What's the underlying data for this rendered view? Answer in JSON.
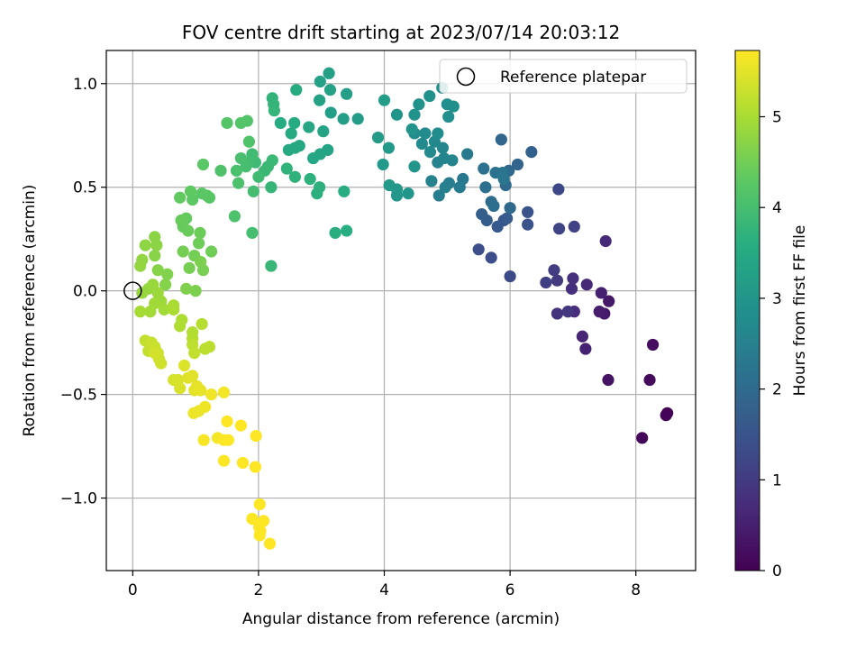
{
  "chart_data": {
    "type": "scatter",
    "title": "FOV centre drift starting at 2023/07/14 20:03:12",
    "xlabel": "Angular distance from reference (arcmin)",
    "ylabel": "Rotation from reference (arcmin)",
    "xlim": [
      -0.42,
      8.95
    ],
    "ylim": [
      -1.35,
      1.16
    ],
    "xticks": [
      0,
      2,
      4,
      6,
      8
    ],
    "xtick_labels": [
      "0",
      "2",
      "4",
      "6",
      "8"
    ],
    "yticks": [
      -1.0,
      -0.5,
      0.0,
      0.5,
      1.0
    ],
    "ytick_labels": [
      "−1.0",
      "−0.5",
      "0.0",
      "0.5",
      "1.0"
    ],
    "grid": true,
    "colormap": "viridis",
    "colorbar": {
      "label": "Hours from first FF file",
      "range": [
        0,
        5.73
      ],
      "ticks": [
        0,
        1,
        2,
        3,
        4,
        5
      ],
      "tick_labels": [
        "0",
        "1",
        "2",
        "3",
        "4",
        "5"
      ]
    },
    "legend": {
      "placement": "top-right",
      "entries": [
        {
          "label": "Reference platepar",
          "marker": "open-circle"
        }
      ]
    },
    "reference_point": {
      "x": 0.0,
      "y": 0.0
    },
    "series": [
      {
        "columns": [
          "x",
          "y",
          "hours"
        ],
        "points": [
          [
            8.5,
            -0.59,
            0.02
          ],
          [
            8.48,
            -0.6,
            0.05
          ],
          [
            8.1,
            -0.71,
            0.1
          ],
          [
            8.22,
            -0.43,
            0.15
          ],
          [
            8.27,
            -0.26,
            0.22
          ],
          [
            7.56,
            -0.43,
            0.3
          ],
          [
            7.57,
            -0.05,
            0.38
          ],
          [
            7.5,
            -0.11,
            0.42
          ],
          [
            7.42,
            -0.1,
            0.48
          ],
          [
            7.45,
            -0.01,
            0.52
          ],
          [
            7.2,
            -0.28,
            0.56
          ],
          [
            7.15,
            -0.22,
            0.6
          ],
          [
            7.22,
            0.03,
            0.66
          ],
          [
            7.52,
            0.24,
            0.7
          ],
          [
            7.02,
            -0.1,
            0.74
          ],
          [
            6.98,
            0.01,
            0.78
          ],
          [
            7.0,
            0.06,
            0.82
          ],
          [
            6.75,
            -0.11,
            0.88
          ],
          [
            6.92,
            -0.1,
            0.92
          ],
          [
            6.75,
            0.05,
            0.98
          ],
          [
            6.7,
            0.1,
            1.02
          ],
          [
            6.57,
            0.04,
            1.08
          ],
          [
            7.02,
            0.31,
            1.12
          ],
          [
            6.78,
            0.3,
            1.18
          ],
          [
            6.77,
            0.49,
            1.24
          ],
          [
            6.0,
            0.07,
            1.3
          ],
          [
            5.7,
            0.16,
            1.36
          ],
          [
            5.5,
            0.2,
            1.4
          ],
          [
            6.28,
            0.32,
            1.45
          ],
          [
            6.28,
            0.38,
            1.5
          ],
          [
            5.9,
            0.34,
            1.55
          ],
          [
            5.8,
            0.31,
            1.6
          ],
          [
            5.95,
            0.35,
            1.65
          ],
          [
            5.63,
            0.34,
            1.7
          ],
          [
            5.55,
            0.37,
            1.75
          ],
          [
            6.34,
            0.67,
            1.8
          ],
          [
            6.12,
            0.61,
            1.85
          ],
          [
            5.86,
            0.73,
            1.9
          ],
          [
            5.98,
            0.58,
            1.94
          ],
          [
            5.93,
            0.51,
            1.98
          ],
          [
            6.0,
            0.4,
            2.0
          ],
          [
            5.7,
            0.43,
            2.04
          ],
          [
            5.74,
            0.41,
            2.08
          ],
          [
            5.61,
            0.5,
            2.1
          ],
          [
            5.58,
            0.59,
            2.14
          ],
          [
            5.77,
            0.57,
            2.18
          ],
          [
            5.88,
            0.57,
            2.22
          ],
          [
            5.9,
            0.54,
            2.26
          ],
          [
            5.25,
            0.54,
            2.3
          ],
          [
            5.32,
            0.66,
            2.34
          ],
          [
            5.2,
            0.5,
            2.38
          ],
          [
            5.03,
            0.52,
            2.42
          ],
          [
            4.87,
            0.46,
            2.46
          ],
          [
            4.97,
            0.5,
            2.5
          ],
          [
            4.75,
            0.53,
            2.54
          ],
          [
            4.85,
            0.62,
            2.58
          ],
          [
            4.95,
            0.64,
            2.6
          ],
          [
            5.08,
            0.63,
            2.62
          ],
          [
            4.93,
            0.69,
            2.66
          ],
          [
            4.8,
            0.72,
            2.7
          ],
          [
            4.65,
            0.76,
            2.72
          ],
          [
            4.73,
            0.67,
            2.74
          ],
          [
            4.6,
            0.71,
            2.76
          ],
          [
            4.48,
            0.76,
            2.78
          ],
          [
            4.85,
            0.76,
            2.8
          ],
          [
            5.02,
            0.84,
            2.82
          ],
          [
            5.0,
            0.9,
            2.84
          ],
          [
            5.1,
            0.89,
            2.86
          ],
          [
            4.92,
            0.98,
            2.88
          ],
          [
            4.72,
            0.94,
            2.9
          ],
          [
            4.55,
            0.9,
            2.92
          ],
          [
            4.48,
            0.85,
            2.94
          ],
          [
            4.44,
            0.78,
            2.96
          ],
          [
            4.2,
            0.85,
            2.98
          ],
          [
            4.48,
            0.6,
            3.0
          ],
          [
            4.38,
            0.47,
            3.02
          ],
          [
            4.2,
            0.49,
            3.04
          ],
          [
            4.2,
            0.46,
            3.06
          ],
          [
            4.08,
            0.51,
            3.08
          ],
          [
            3.98,
            0.61,
            3.1
          ],
          [
            4.07,
            0.69,
            3.12
          ],
          [
            3.9,
            0.74,
            3.14
          ],
          [
            4.0,
            0.92,
            3.16
          ],
          [
            3.58,
            0.83,
            3.18
          ],
          [
            3.4,
            0.95,
            3.2
          ],
          [
            3.35,
            0.83,
            3.22
          ],
          [
            3.15,
            0.86,
            3.24
          ],
          [
            3.12,
            1.05,
            3.26
          ],
          [
            2.98,
            1.01,
            3.28
          ],
          [
            3.14,
            0.97,
            3.3
          ],
          [
            2.97,
            0.92,
            3.32
          ],
          [
            3.03,
            0.77,
            3.34
          ],
          [
            3.1,
            0.68,
            3.36
          ],
          [
            2.98,
            0.66,
            3.38
          ],
          [
            2.87,
            0.64,
            3.4
          ],
          [
            2.8,
            0.79,
            3.42
          ],
          [
            2.65,
            0.7,
            3.44
          ],
          [
            2.58,
            0.69,
            3.46
          ],
          [
            2.48,
            0.68,
            3.48
          ],
          [
            2.52,
            0.76,
            3.5
          ],
          [
            2.57,
            0.81,
            3.52
          ],
          [
            2.35,
            0.81,
            3.54
          ],
          [
            2.6,
            0.97,
            3.56
          ],
          [
            3.36,
            0.48,
            3.58
          ],
          [
            3.4,
            0.29,
            3.6
          ],
          [
            3.22,
            0.28,
            3.62
          ],
          [
            2.93,
            0.47,
            3.64
          ],
          [
            2.97,
            0.5,
            3.66
          ],
          [
            2.82,
            0.54,
            3.68
          ],
          [
            2.58,
            0.55,
            3.7
          ],
          [
            2.45,
            0.59,
            3.72
          ],
          [
            2.22,
            0.93,
            3.74
          ],
          [
            2.24,
            0.9,
            3.76
          ],
          [
            2.25,
            0.87,
            3.78
          ],
          [
            2.2,
            0.5,
            3.8
          ],
          [
            2.2,
            0.12,
            3.82
          ],
          [
            2.15,
            0.6,
            3.84
          ],
          [
            2.22,
            0.63,
            3.86
          ],
          [
            2.1,
            0.58,
            3.88
          ],
          [
            1.95,
            0.62,
            3.9
          ],
          [
            2.0,
            0.55,
            3.92
          ],
          [
            1.9,
            0.66,
            3.94
          ],
          [
            1.85,
            0.62,
            3.96
          ],
          [
            1.92,
            0.48,
            3.98
          ],
          [
            1.9,
            0.28,
            4.0
          ],
          [
            1.8,
            0.6,
            4.02
          ],
          [
            1.72,
            0.64,
            4.04
          ],
          [
            1.65,
            0.58,
            4.06
          ],
          [
            1.68,
            0.52,
            4.08
          ],
          [
            1.62,
            0.36,
            4.1
          ],
          [
            1.4,
            0.58,
            4.12
          ],
          [
            1.85,
            0.72,
            4.14
          ],
          [
            1.82,
            0.82,
            4.16
          ],
          [
            1.72,
            0.81,
            4.18
          ],
          [
            1.5,
            0.81,
            4.2
          ],
          [
            1.22,
            0.45,
            4.22
          ],
          [
            1.18,
            0.46,
            4.24
          ],
          [
            1.1,
            0.47,
            4.26
          ],
          [
            1.12,
            0.61,
            4.28
          ],
          [
            0.95,
            0.44,
            4.3
          ],
          [
            0.92,
            0.48,
            4.32
          ],
          [
            0.75,
            0.45,
            4.34
          ],
          [
            0.85,
            0.35,
            4.36
          ],
          [
            0.8,
            0.31,
            4.38
          ],
          [
            0.77,
            0.34,
            4.4
          ],
          [
            0.88,
            0.29,
            4.42
          ],
          [
            1.07,
            0.28,
            4.44
          ],
          [
            1.05,
            0.23,
            4.46
          ],
          [
            1.25,
            0.19,
            4.48
          ],
          [
            0.98,
            0.17,
            4.5
          ],
          [
            0.8,
            0.19,
            4.52
          ],
          [
            0.9,
            0.11,
            4.54
          ],
          [
            1.12,
            0.1,
            4.56
          ],
          [
            1.08,
            0.14,
            4.58
          ],
          [
            1.0,
            0.0,
            4.6
          ],
          [
            0.85,
            0.01,
            4.62
          ],
          [
            0.55,
            0.08,
            4.64
          ],
          [
            0.52,
            0.03,
            4.66
          ],
          [
            0.4,
            0.1,
            4.68
          ],
          [
            0.35,
            0.17,
            4.7
          ],
          [
            0.35,
            0.26,
            4.72
          ],
          [
            0.38,
            0.22,
            4.74
          ],
          [
            0.2,
            0.22,
            4.76
          ],
          [
            0.15,
            0.15,
            4.78
          ],
          [
            0.12,
            0.12,
            4.8
          ],
          [
            0.25,
            0.01,
            4.82
          ],
          [
            0.15,
            -0.01,
            4.84
          ],
          [
            0.32,
            0.03,
            4.86
          ],
          [
            0.4,
            -0.01,
            4.88
          ],
          [
            0.45,
            -0.05,
            4.9
          ],
          [
            0.35,
            -0.06,
            4.92
          ],
          [
            0.5,
            -0.09,
            4.94
          ],
          [
            0.28,
            -0.1,
            4.96
          ],
          [
            0.12,
            -0.1,
            4.98
          ],
          [
            0.65,
            -0.07,
            5.0
          ],
          [
            0.65,
            -0.09,
            5.02
          ],
          [
            0.78,
            -0.14,
            5.04
          ],
          [
            0.75,
            -0.17,
            5.06
          ],
          [
            0.95,
            -0.2,
            5.08
          ],
          [
            0.95,
            -0.23,
            5.1
          ],
          [
            1.1,
            -0.16,
            5.12
          ],
          [
            1.15,
            -0.28,
            5.14
          ],
          [
            1.22,
            -0.27,
            5.16
          ],
          [
            0.95,
            -0.26,
            5.18
          ],
          [
            0.98,
            -0.3,
            5.2
          ],
          [
            0.2,
            -0.24,
            5.22
          ],
          [
            0.25,
            -0.29,
            5.24
          ],
          [
            0.3,
            -0.25,
            5.26
          ],
          [
            0.35,
            -0.27,
            5.28
          ],
          [
            0.4,
            -0.3,
            5.3
          ],
          [
            0.42,
            -0.33,
            5.32
          ],
          [
            0.45,
            -0.35,
            5.34
          ],
          [
            0.35,
            -0.3,
            5.36
          ],
          [
            0.65,
            -0.43,
            5.38
          ],
          [
            0.72,
            -0.43,
            5.4
          ],
          [
            0.75,
            -0.47,
            5.42
          ],
          [
            0.82,
            -0.36,
            5.44
          ],
          [
            0.88,
            -0.42,
            5.46
          ],
          [
            0.95,
            -0.41,
            5.48
          ],
          [
            0.98,
            -0.48,
            5.5
          ],
          [
            1.02,
            -0.46,
            5.52
          ],
          [
            1.08,
            -0.48,
            5.54
          ],
          [
            1.05,
            -0.58,
            5.56
          ],
          [
            0.97,
            -0.59,
            5.58
          ],
          [
            1.15,
            -0.56,
            5.6
          ],
          [
            1.25,
            -0.5,
            5.62
          ],
          [
            1.45,
            -0.49,
            5.64
          ],
          [
            1.35,
            -0.71,
            5.66
          ],
          [
            1.13,
            -0.72,
            5.68
          ],
          [
            1.45,
            -0.72,
            5.7
          ],
          [
            1.52,
            -0.72,
            5.72
          ],
          [
            1.5,
            -0.63,
            5.73
          ],
          [
            1.72,
            -0.65,
            5.73
          ],
          [
            1.45,
            -0.82,
            5.73
          ],
          [
            1.75,
            -0.83,
            5.73
          ],
          [
            1.95,
            -0.85,
            5.73
          ],
          [
            1.96,
            -0.7,
            5.73
          ],
          [
            2.02,
            -1.03,
            5.73
          ],
          [
            2.08,
            -1.11,
            5.73
          ],
          [
            1.9,
            -1.1,
            5.73
          ],
          [
            2.01,
            -1.14,
            5.73
          ],
          [
            2.03,
            -1.16,
            5.73
          ],
          [
            2.02,
            -1.18,
            5.73
          ],
          [
            2.18,
            -1.22,
            5.73
          ]
        ]
      }
    ]
  }
}
